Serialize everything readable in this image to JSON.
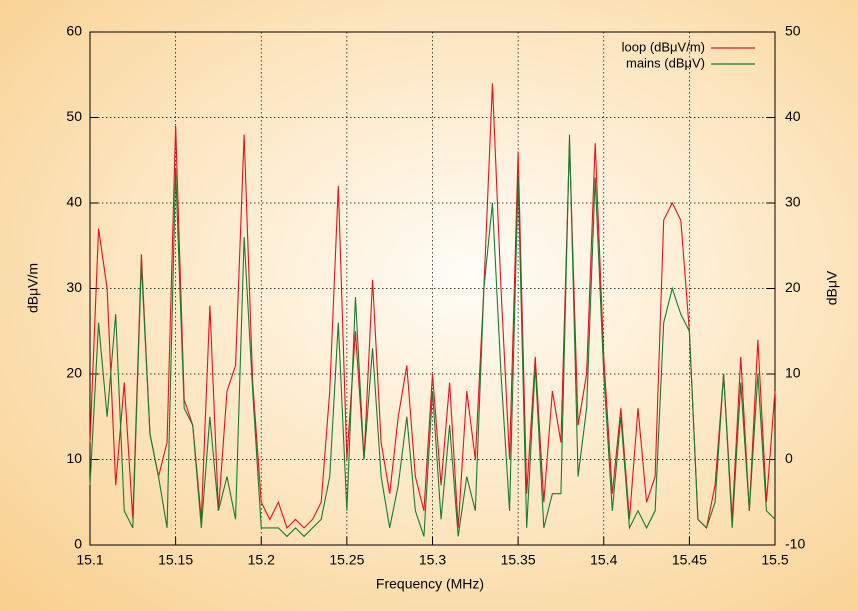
{
  "chart_data": {
    "type": "line",
    "xlabel": "Frequency (MHz)",
    "ylabel": "dBμV/m",
    "y2label": "dBμV",
    "x": [
      15.1,
      15.105,
      15.11,
      15.115,
      15.12,
      15.125,
      15.13,
      15.135,
      15.14,
      15.145,
      15.15,
      15.155,
      15.16,
      15.165,
      15.17,
      15.175,
      15.18,
      15.185,
      15.19,
      15.195,
      15.2,
      15.205,
      15.21,
      15.215,
      15.22,
      15.225,
      15.23,
      15.235,
      15.24,
      15.245,
      15.25,
      15.255,
      15.26,
      15.265,
      15.27,
      15.275,
      15.28,
      15.285,
      15.29,
      15.295,
      15.3,
      15.305,
      15.31,
      15.315,
      15.32,
      15.325,
      15.33,
      15.335,
      15.34,
      15.345,
      15.35,
      15.355,
      15.36,
      15.365,
      15.37,
      15.375,
      15.38,
      15.385,
      15.39,
      15.395,
      15.4,
      15.405,
      15.41,
      15.415,
      15.42,
      15.425,
      15.43,
      15.435,
      15.44,
      15.445,
      15.45,
      15.455,
      15.46,
      15.465,
      15.47,
      15.475,
      15.48,
      15.485,
      15.49,
      15.495,
      15.5
    ],
    "series": [
      {
        "name": "loop (dBμV/m)",
        "color": "#e8101a",
        "values": [
          12,
          37,
          30,
          7,
          19,
          3,
          34,
          13,
          8,
          12,
          49,
          17,
          14,
          3,
          28,
          4,
          18,
          21,
          48,
          19,
          5,
          3,
          5,
          2,
          3,
          2,
          3,
          5,
          18,
          42,
          10,
          25,
          10,
          31,
          12,
          6,
          15,
          21,
          8,
          4,
          20,
          7,
          19,
          2,
          18,
          10,
          30,
          54,
          30,
          10,
          46,
          6,
          22,
          5,
          18,
          12,
          47,
          14,
          20,
          47,
          22,
          6,
          16,
          3,
          16,
          5,
          8,
          38,
          40,
          38,
          25,
          3,
          2,
          7,
          20,
          3,
          22,
          4,
          24,
          5,
          18
        ]
      },
      {
        "name": "mains (dBμV)",
        "color": "#1a7a2e",
        "axis": "y2",
        "values": [
          -3,
          16,
          5,
          17,
          -6,
          -8,
          23,
          3,
          -2,
          -8,
          34,
          6,
          4,
          -8,
          5,
          -6,
          -2,
          -7,
          26,
          8,
          -8,
          -8,
          -8,
          -9,
          -8,
          -9,
          -8,
          -7,
          -2,
          16,
          -6,
          19,
          0,
          13,
          -2,
          -8,
          -3,
          5,
          -6,
          -9,
          8,
          -7,
          4,
          -9,
          -2,
          -6,
          20,
          30,
          10,
          -6,
          33,
          -8,
          11,
          -8,
          -4,
          -4,
          38,
          -2,
          6,
          33,
          10,
          -6,
          5,
          -8,
          -6,
          -8,
          -6,
          16,
          20,
          17,
          15,
          -7,
          -8,
          -5,
          10,
          -8,
          9,
          -6,
          10,
          -6,
          -7
        ]
      }
    ],
    "xlim": [
      15.1,
      15.5
    ],
    "xticks": [
      15.1,
      15.15,
      15.2,
      15.25,
      15.3,
      15.35,
      15.4,
      15.45,
      15.5
    ],
    "ylim": [
      0,
      60
    ],
    "yticks": [
      0,
      10,
      20,
      30,
      40,
      50,
      60
    ],
    "y2lim": [
      -10,
      50
    ],
    "y2ticks": [
      -10,
      0,
      10,
      20,
      30,
      40,
      50
    ],
    "grid": true,
    "legend": "top-right"
  }
}
